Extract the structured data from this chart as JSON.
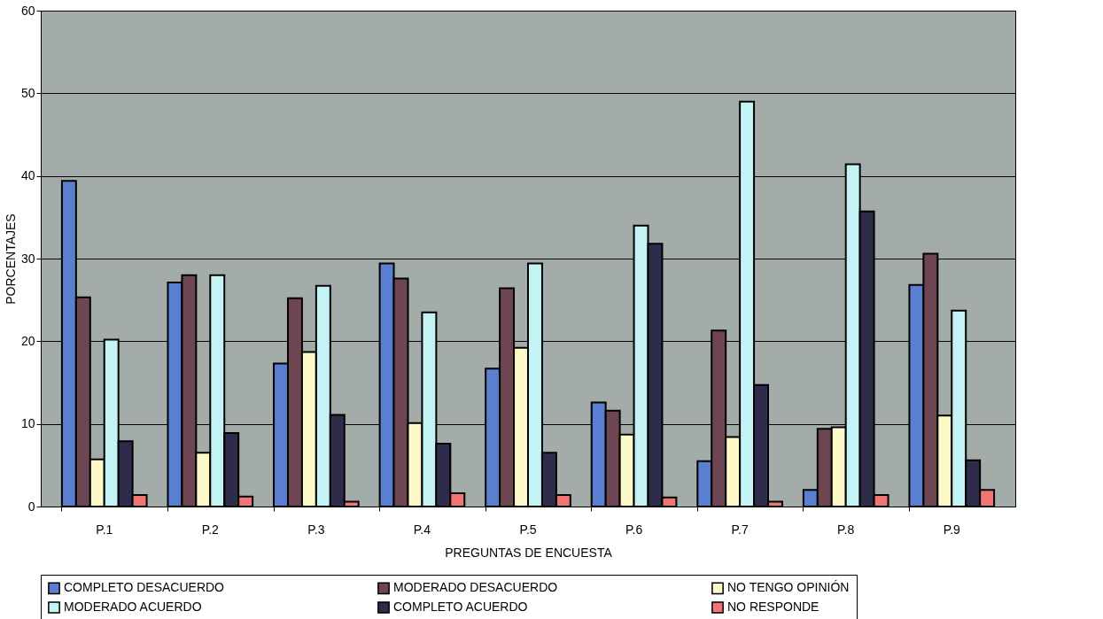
{
  "chart_data": {
    "type": "bar",
    "xlabel": "PREGUNTAS DE ENCUESTA",
    "ylabel": "PORCENTAJES",
    "categories": [
      "P.1",
      "P.2",
      "P.3",
      "P.4",
      "P.5",
      "P.6",
      "P.7",
      "P.8",
      "P.9"
    ],
    "series": [
      {
        "name": "COMPLETO DESACUERDO",
        "color": "#5b7fd0",
        "values": [
          39.4,
          27.1,
          17.3,
          29.4,
          16.7,
          12.6,
          5.5,
          2.0,
          26.8
        ]
      },
      {
        "name": "MODERADO DESACUERDO",
        "color": "#6e4552",
        "values": [
          25.3,
          28.0,
          25.2,
          27.6,
          26.4,
          11.6,
          21.3,
          9.4,
          30.6
        ]
      },
      {
        "name": "NO TENGO OPINIÓN",
        "color": "#fdf9c8",
        "values": [
          5.7,
          6.5,
          18.7,
          10.1,
          19.2,
          8.7,
          8.4,
          9.6,
          11.0
        ]
      },
      {
        "name": "MODERADO ACUERDO",
        "color": "#c4f3f5",
        "values": [
          20.2,
          28.0,
          26.7,
          23.5,
          29.4,
          34.0,
          49.0,
          41.4,
          23.7
        ]
      },
      {
        "name": "COMPLETO ACUERDO",
        "color": "#2f2b4a",
        "values": [
          7.9,
          8.9,
          11.1,
          7.6,
          6.5,
          31.8,
          14.7,
          35.7,
          5.6
        ]
      },
      {
        "name": "NO RESPONDE",
        "color": "#f07575",
        "values": [
          1.4,
          1.2,
          0.6,
          1.6,
          1.4,
          1.1,
          0.6,
          1.4,
          2.0
        ]
      }
    ],
    "ylim": [
      0,
      60
    ],
    "yticks": [
      0,
      10,
      20,
      30,
      40,
      50,
      60
    ],
    "grid": "y",
    "legend": "bottom"
  }
}
